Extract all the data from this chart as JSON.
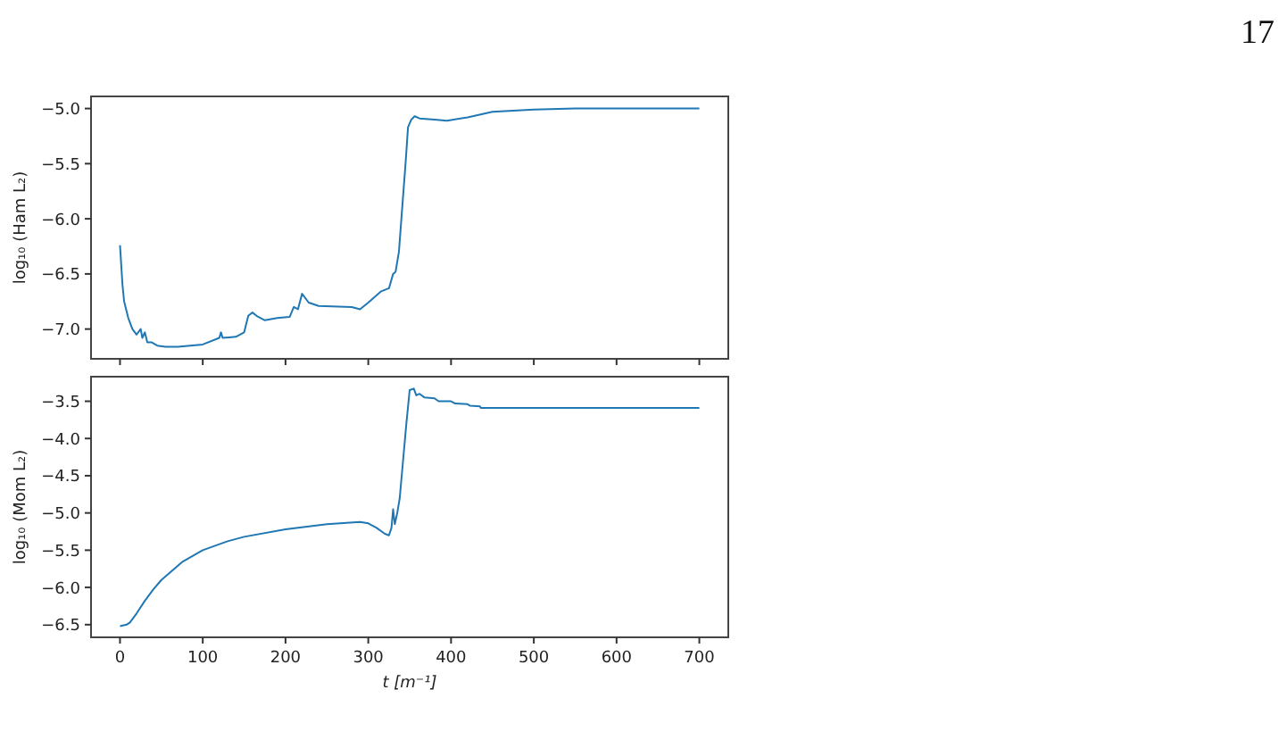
{
  "chart_data": [
    {
      "type": "line",
      "annotations": [
        "17"
      ],
      "ylabel": "log₁₀ (Ham L₂)",
      "xlim": [
        -35,
        735
      ],
      "xticks": [
        {
          "value": 0,
          "label": null
        },
        {
          "value": 100,
          "label": null
        },
        {
          "value": 200,
          "label": null
        },
        {
          "value": 300,
          "label": null
        },
        {
          "value": 400,
          "label": null
        },
        {
          "value": 500,
          "label": null
        },
        {
          "value": 600,
          "label": null
        },
        {
          "value": 700,
          "label": null
        }
      ],
      "ylim": [
        -7.27,
        -4.89
      ],
      "yticks": [
        {
          "value": -7,
          "label": "−7.0"
        },
        {
          "value": -6.5,
          "label": "−6.5"
        },
        {
          "value": -6,
          "label": "−6.0"
        },
        {
          "value": -5.5,
          "label": "−5.5"
        },
        {
          "value": -5,
          "label": "−5.0"
        }
      ],
      "tick_labels": "y",
      "series": [
        {
          "color": "#1f77b4",
          "x": [
            0,
            3,
            5,
            10,
            15,
            20,
            25,
            27,
            30,
            33,
            38,
            45,
            55,
            70,
            100,
            120,
            122,
            124,
            140,
            150,
            155,
            160,
            165,
            175,
            190,
            205,
            210,
            215,
            220,
            228,
            240,
            280,
            290,
            300,
            315,
            325,
            330,
            333,
            337,
            340,
            345,
            348,
            352,
            356,
            362,
            380,
            395,
            420,
            450,
            500,
            550,
            700
          ],
          "values": [
            -6.24,
            -6.6,
            -6.75,
            -6.9,
            -7.0,
            -7.05,
            -7.0,
            -7.08,
            -7.03,
            -7.12,
            -7.12,
            -7.15,
            -7.16,
            -7.16,
            -7.14,
            -7.08,
            -7.03,
            -7.08,
            -7.07,
            -7.03,
            -6.88,
            -6.85,
            -6.88,
            -6.92,
            -6.9,
            -6.89,
            -6.8,
            -6.82,
            -6.68,
            -6.76,
            -6.79,
            -6.8,
            -6.82,
            -6.76,
            -6.66,
            -6.63,
            -6.5,
            -6.48,
            -6.3,
            -6.0,
            -5.5,
            -5.17,
            -5.1,
            -5.07,
            -5.09,
            -5.1,
            -5.11,
            -5.08,
            -5.03,
            -5.01,
            -5.0,
            -5.0
          ]
        }
      ]
    },
    {
      "type": "line",
      "ylabel": "log₁₀ (Mom L₂)",
      "xlabel": "t [m⁻¹]",
      "xlim": [
        -35,
        735
      ],
      "xticks": [
        0,
        100,
        200,
        300,
        400,
        500,
        600,
        700
      ],
      "ylim": [
        -6.67,
        -3.17
      ],
      "yticks": [
        {
          "value": -6.5,
          "label": "−6.5"
        },
        {
          "value": -6,
          "label": "−6.0"
        },
        {
          "value": -5.5,
          "label": "−5.5"
        },
        {
          "value": -5,
          "label": "−5.0"
        },
        {
          "value": -4.5,
          "label": "−4.5"
        },
        {
          "value": -4,
          "label": "−4.0"
        },
        {
          "value": -3.5,
          "label": "−3.5"
        }
      ],
      "series": [
        {
          "color": "#1f77b4",
          "x": [
            0,
            8,
            12,
            20,
            30,
            40,
            50,
            75,
            100,
            130,
            150,
            200,
            250,
            290,
            300,
            310,
            320,
            325,
            328,
            330,
            332,
            335,
            338,
            342,
            346,
            350,
            355,
            358,
            362,
            368,
            380,
            385,
            400,
            405,
            420,
            423,
            435,
            436,
            500,
            700
          ],
          "values": [
            -6.52,
            -6.5,
            -6.47,
            -6.35,
            -6.18,
            -6.03,
            -5.9,
            -5.66,
            -5.5,
            -5.38,
            -5.32,
            -5.22,
            -5.15,
            -5.12,
            -5.14,
            -5.2,
            -5.28,
            -5.3,
            -5.2,
            -4.95,
            -5.15,
            -5.0,
            -4.8,
            -4.3,
            -3.8,
            -3.35,
            -3.33,
            -3.42,
            -3.4,
            -3.45,
            -3.46,
            -3.5,
            -3.5,
            -3.53,
            -3.54,
            -3.56,
            -3.57,
            -3.59,
            -3.59,
            -3.59
          ]
        }
      ]
    }
  ]
}
